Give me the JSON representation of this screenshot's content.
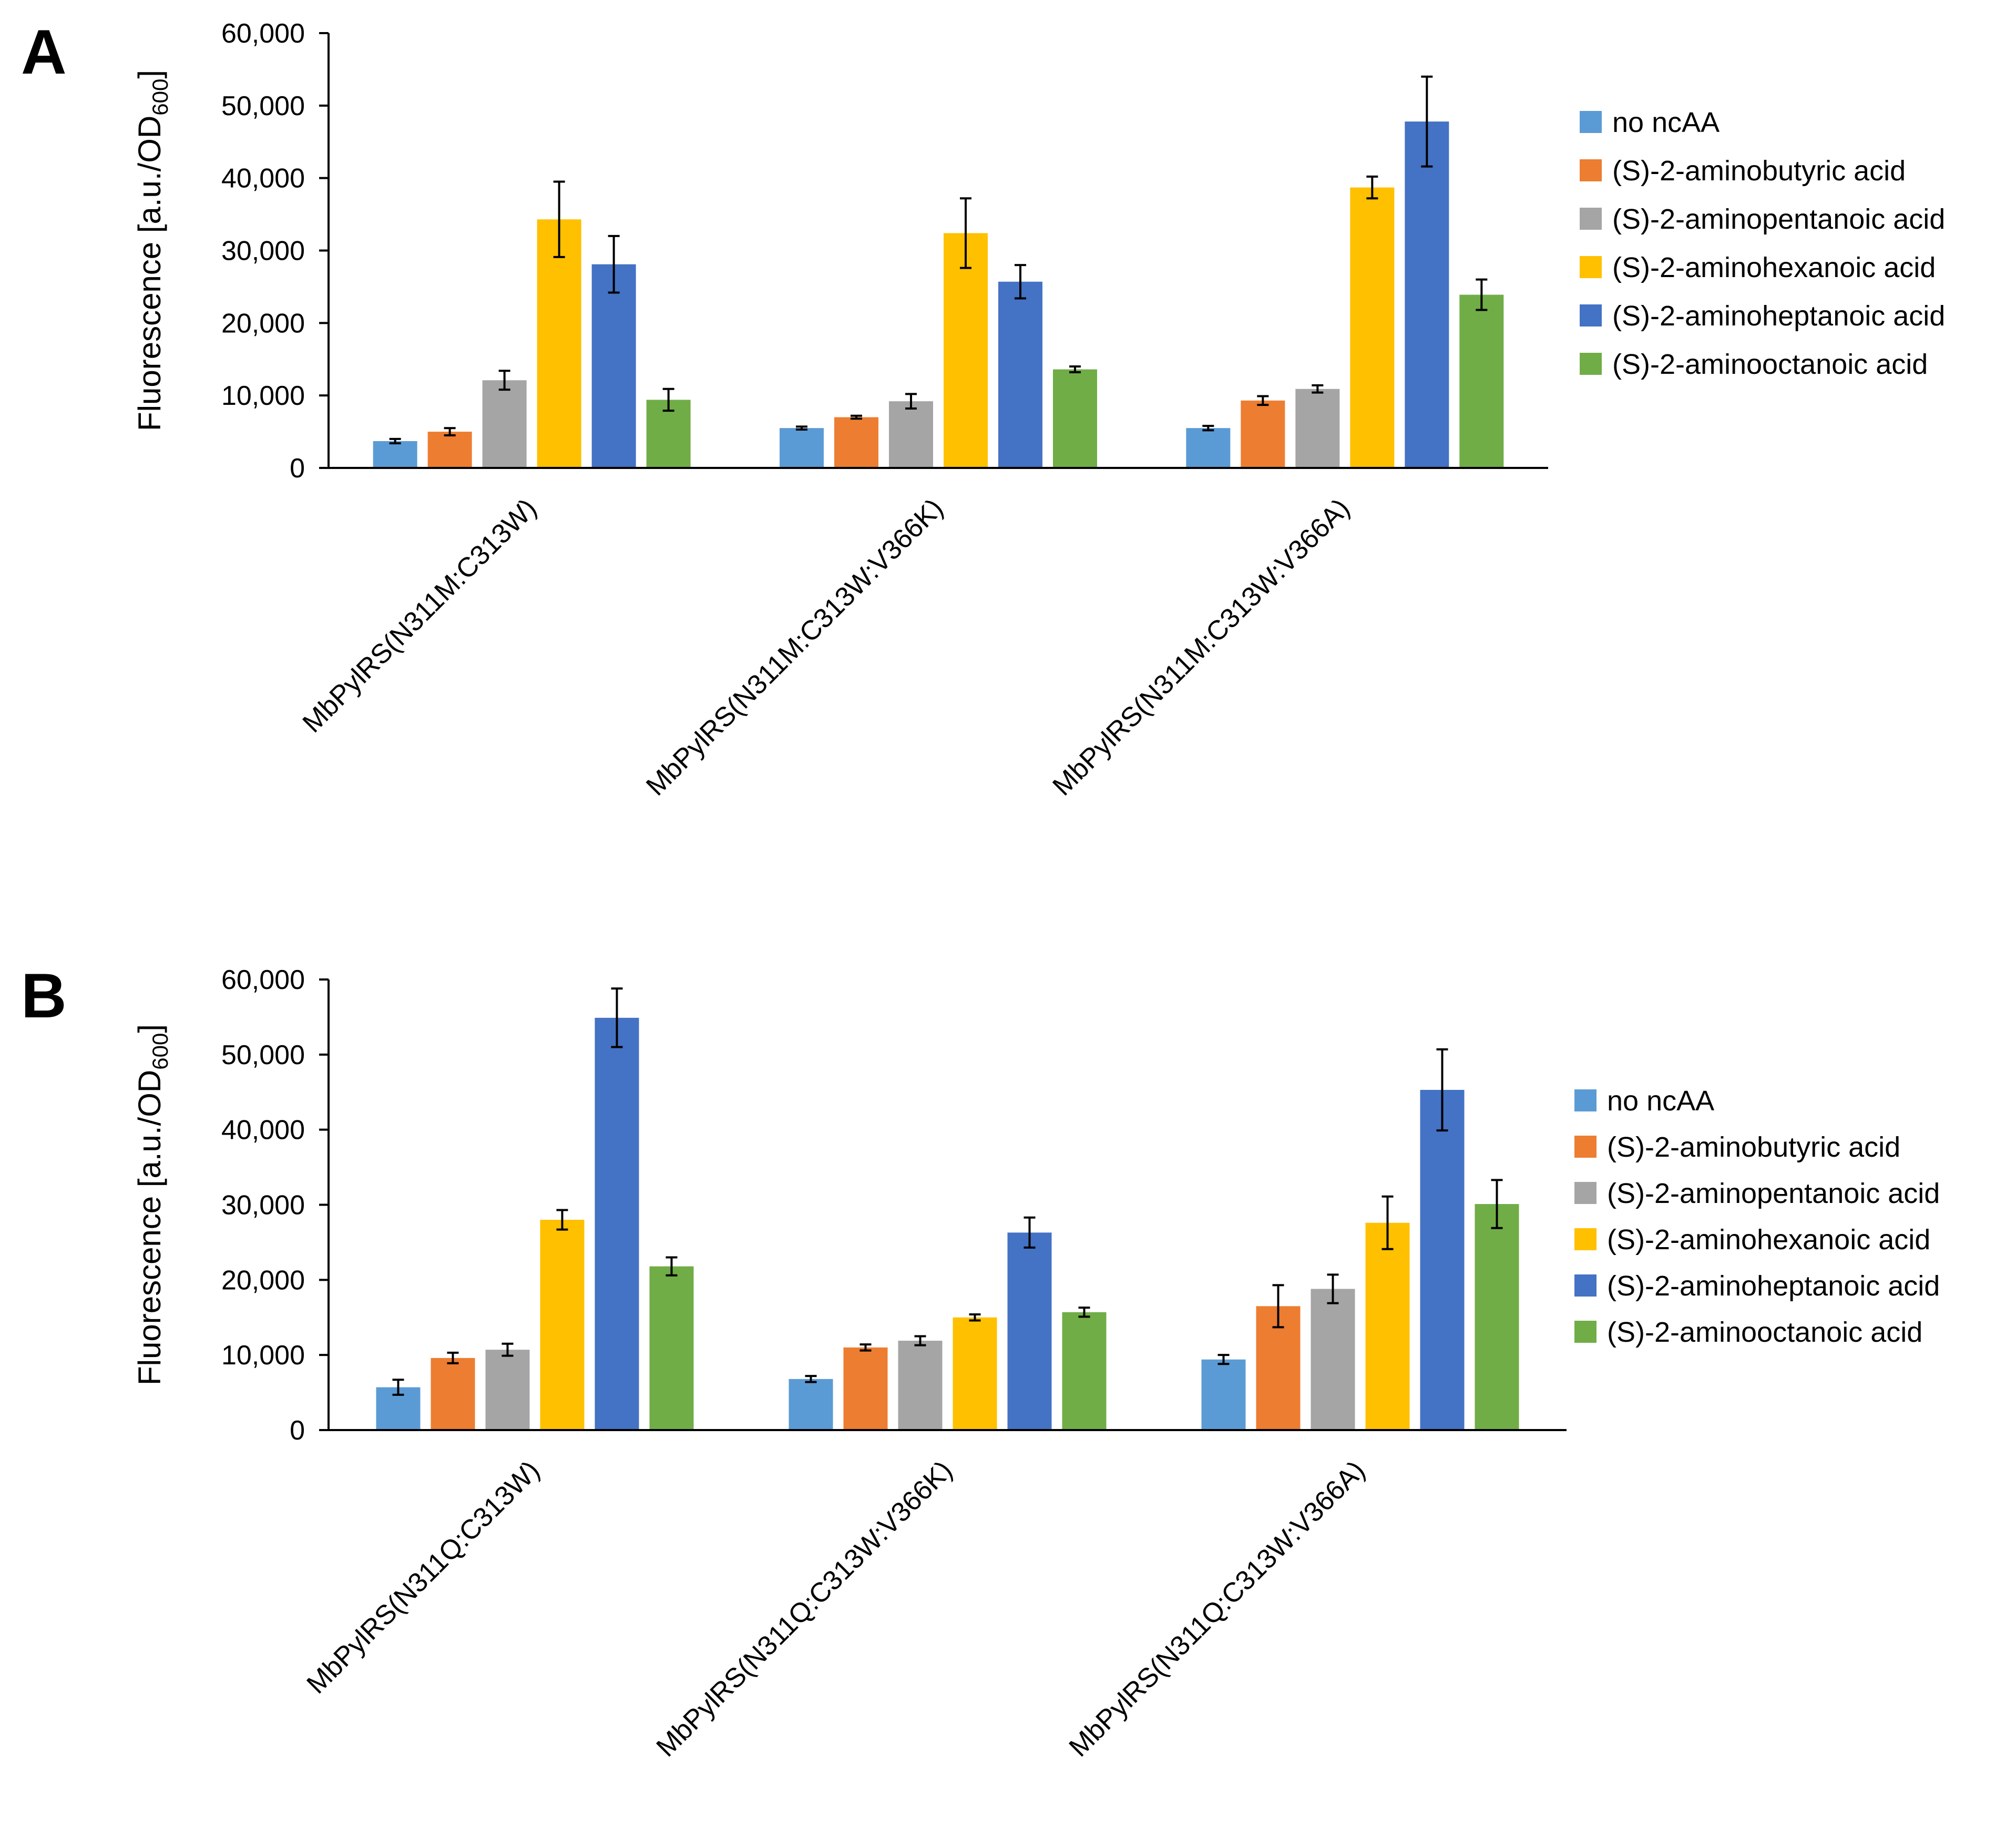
{
  "series_colors": [
    "#5b9bd5",
    "#ed7d31",
    "#a5a5a5",
    "#ffc000",
    "#4472c4",
    "#70ad47"
  ],
  "chart_data": [
    {
      "panel_label": "A",
      "type": "bar",
      "title": "",
      "xlabel": "",
      "ylabel": "Fluorescence [a.u./OD",
      "ylabel_sub": "600",
      "ylabel_close": "]",
      "ylim": [
        0,
        60000
      ],
      "yticks": [
        "0",
        "10,000",
        "20,000",
        "30,000",
        "40,000",
        "50,000",
        "60,000"
      ],
      "grid": false,
      "legend_position": "right",
      "categories": [
        "MbPylRS(N311M:C313W)",
        "MbPylRS(N311M:C313W:V366K)",
        "MbPylRS(N311M:C313W:V366A)"
      ],
      "series": [
        {
          "name": "no ncAA",
          "values": [
            3700,
            5500,
            5500
          ],
          "errors": [
            300,
            200,
            300
          ]
        },
        {
          "name": "(S)-2-aminobutyric acid",
          "values": [
            5000,
            7000,
            9300
          ],
          "errors": [
            500,
            200,
            600
          ]
        },
        {
          "name": "(S)-2-aminopentanoic acid",
          "values": [
            12100,
            9200,
            10900
          ],
          "errors": [
            1300,
            1000,
            500
          ]
        },
        {
          "name": "(S)-2-aminohexanoic acid",
          "values": [
            34300,
            32400,
            38700
          ],
          "errors": [
            5200,
            4800,
            1500
          ]
        },
        {
          "name": "(S)-2-aminoheptanoic acid",
          "values": [
            28100,
            25700,
            47800
          ],
          "errors": [
            3900,
            2300,
            6200
          ]
        },
        {
          "name": "(S)-2-aminooctanoic acid",
          "values": [
            9400,
            13600,
            23900
          ],
          "errors": [
            1500,
            400,
            2100
          ]
        }
      ]
    },
    {
      "panel_label": "B",
      "type": "bar",
      "title": "",
      "xlabel": "",
      "ylabel": "Fluorescence [a.u./OD",
      "ylabel_sub": "600",
      "ylabel_close": "]",
      "ylim": [
        0,
        60000
      ],
      "yticks": [
        "0",
        "10,000",
        "20,000",
        "30,000",
        "40,000",
        "50,000",
        "60,000"
      ],
      "grid": false,
      "legend_position": "right",
      "categories": [
        "MbPylRS(N311Q:C313W)",
        "MbPylRS(N311Q:C313W:V366K)",
        "MbPylRS(N311Q:C313W:V366A)"
      ],
      "series": [
        {
          "name": "no ncAA",
          "values": [
            5700,
            6800,
            9400
          ],
          "errors": [
            1000,
            400,
            600
          ]
        },
        {
          "name": "(S)-2-aminobutyric acid",
          "values": [
            9600,
            11000,
            16500
          ],
          "errors": [
            700,
            400,
            2800
          ]
        },
        {
          "name": "(S)-2-aminopentanoic acid",
          "values": [
            10700,
            11900,
            18800
          ],
          "errors": [
            800,
            600,
            1900
          ]
        },
        {
          "name": "(S)-2-aminohexanoic acid",
          "values": [
            28000,
            15000,
            27600
          ],
          "errors": [
            1300,
            400,
            3500
          ]
        },
        {
          "name": "(S)-2-aminoheptanoic acid",
          "values": [
            54900,
            26300,
            45300
          ],
          "errors": [
            3900,
            2000,
            5400
          ]
        },
        {
          "name": "(S)-2-aminooctanoic acid",
          "values": [
            21800,
            15700,
            30100
          ],
          "errors": [
            1200,
            600,
            3200
          ]
        }
      ]
    }
  ]
}
